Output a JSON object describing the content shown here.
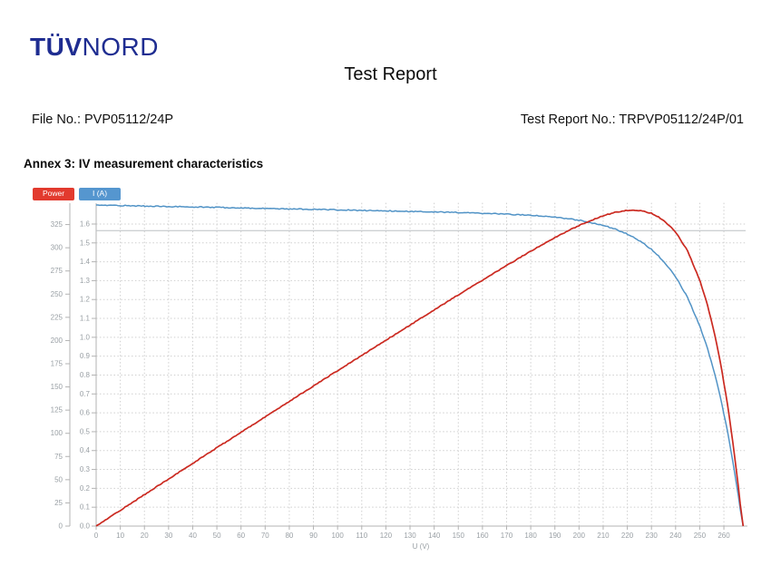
{
  "page": {
    "logo": {
      "bold": "TÜV",
      "regular": "NORD",
      "color": "#1f2d91"
    },
    "title": "Test Report",
    "file_no": "File No.: PVP05112/24P",
    "report_no": "Test Report No.: TRPVP05112/24P/01",
    "annex_heading": "Annex 3: IV measurement characteristics"
  },
  "legend": [
    {
      "label": "Power",
      "color": "#e23a2e"
    },
    {
      "label": "I (A)",
      "color": "#5596cf"
    }
  ],
  "chart_data": {
    "type": "line",
    "title": "",
    "xlabel": "U (V)",
    "x_range": [
      0,
      269
    ],
    "x_ticks": [
      0,
      10,
      20,
      30,
      40,
      50,
      60,
      70,
      80,
      90,
      100,
      110,
      120,
      130,
      140,
      150,
      160,
      170,
      180,
      190,
      200,
      210,
      220,
      230,
      240,
      250,
      260
    ],
    "left_outer_axis": {
      "name": "Power",
      "range": [
        0,
        350
      ],
      "ticks": [
        0,
        25,
        50,
        75,
        100,
        125,
        150,
        175,
        200,
        225,
        250,
        275,
        300,
        325
      ]
    },
    "left_inner_axis": {
      "name": "I (A)",
      "range": [
        0,
        1.72
      ],
      "ticks": [
        0,
        0.1,
        0.2,
        0.3,
        0.4,
        0.5,
        0.6,
        0.7,
        0.8,
        0.9,
        1.0,
        1.1,
        1.2,
        1.3,
        1.4,
        1.5,
        1.6
      ]
    },
    "grid": "dashed",
    "reference_line_current": 1.565,
    "x": [
      0,
      10,
      20,
      30,
      40,
      50,
      60,
      70,
      80,
      90,
      100,
      110,
      120,
      130,
      140,
      150,
      160,
      170,
      180,
      190,
      195,
      200,
      205,
      210,
      215,
      220,
      225,
      230,
      235,
      240,
      245,
      250,
      253,
      256,
      259,
      262,
      264,
      266,
      267,
      268
    ],
    "series": [
      {
        "name": "Power",
        "axis": "power",
        "color": "#cb2a21",
        "values": [
          0,
          17.0,
          33.9,
          50.8,
          67.6,
          84.4,
          101.1,
          117.8,
          134.4,
          151.0,
          167.5,
          183.9,
          200.4,
          216.7,
          233.0,
          249.2,
          265.1,
          280.8,
          296.3,
          310.8,
          317.7,
          324.0,
          329.6,
          334.5,
          338.2,
          340.3,
          340.2,
          337.2,
          329.9,
          317.0,
          296.5,
          265.0,
          240.1,
          208.9,
          170.4,
          122.6,
          85.0,
          42.0,
          18.2,
          0
        ]
      },
      {
        "name": "I (A)",
        "axis": "current",
        "color": "#5193c6",
        "values": [
          1.7,
          1.698,
          1.695,
          1.693,
          1.69,
          1.688,
          1.685,
          1.683,
          1.68,
          1.678,
          1.675,
          1.672,
          1.67,
          1.667,
          1.664,
          1.661,
          1.657,
          1.652,
          1.646,
          1.636,
          1.629,
          1.62,
          1.608,
          1.593,
          1.573,
          1.547,
          1.512,
          1.466,
          1.404,
          1.321,
          1.21,
          1.06,
          0.949,
          0.816,
          0.658,
          0.468,
          0.322,
          0.158,
          0.068,
          0
        ]
      }
    ]
  }
}
